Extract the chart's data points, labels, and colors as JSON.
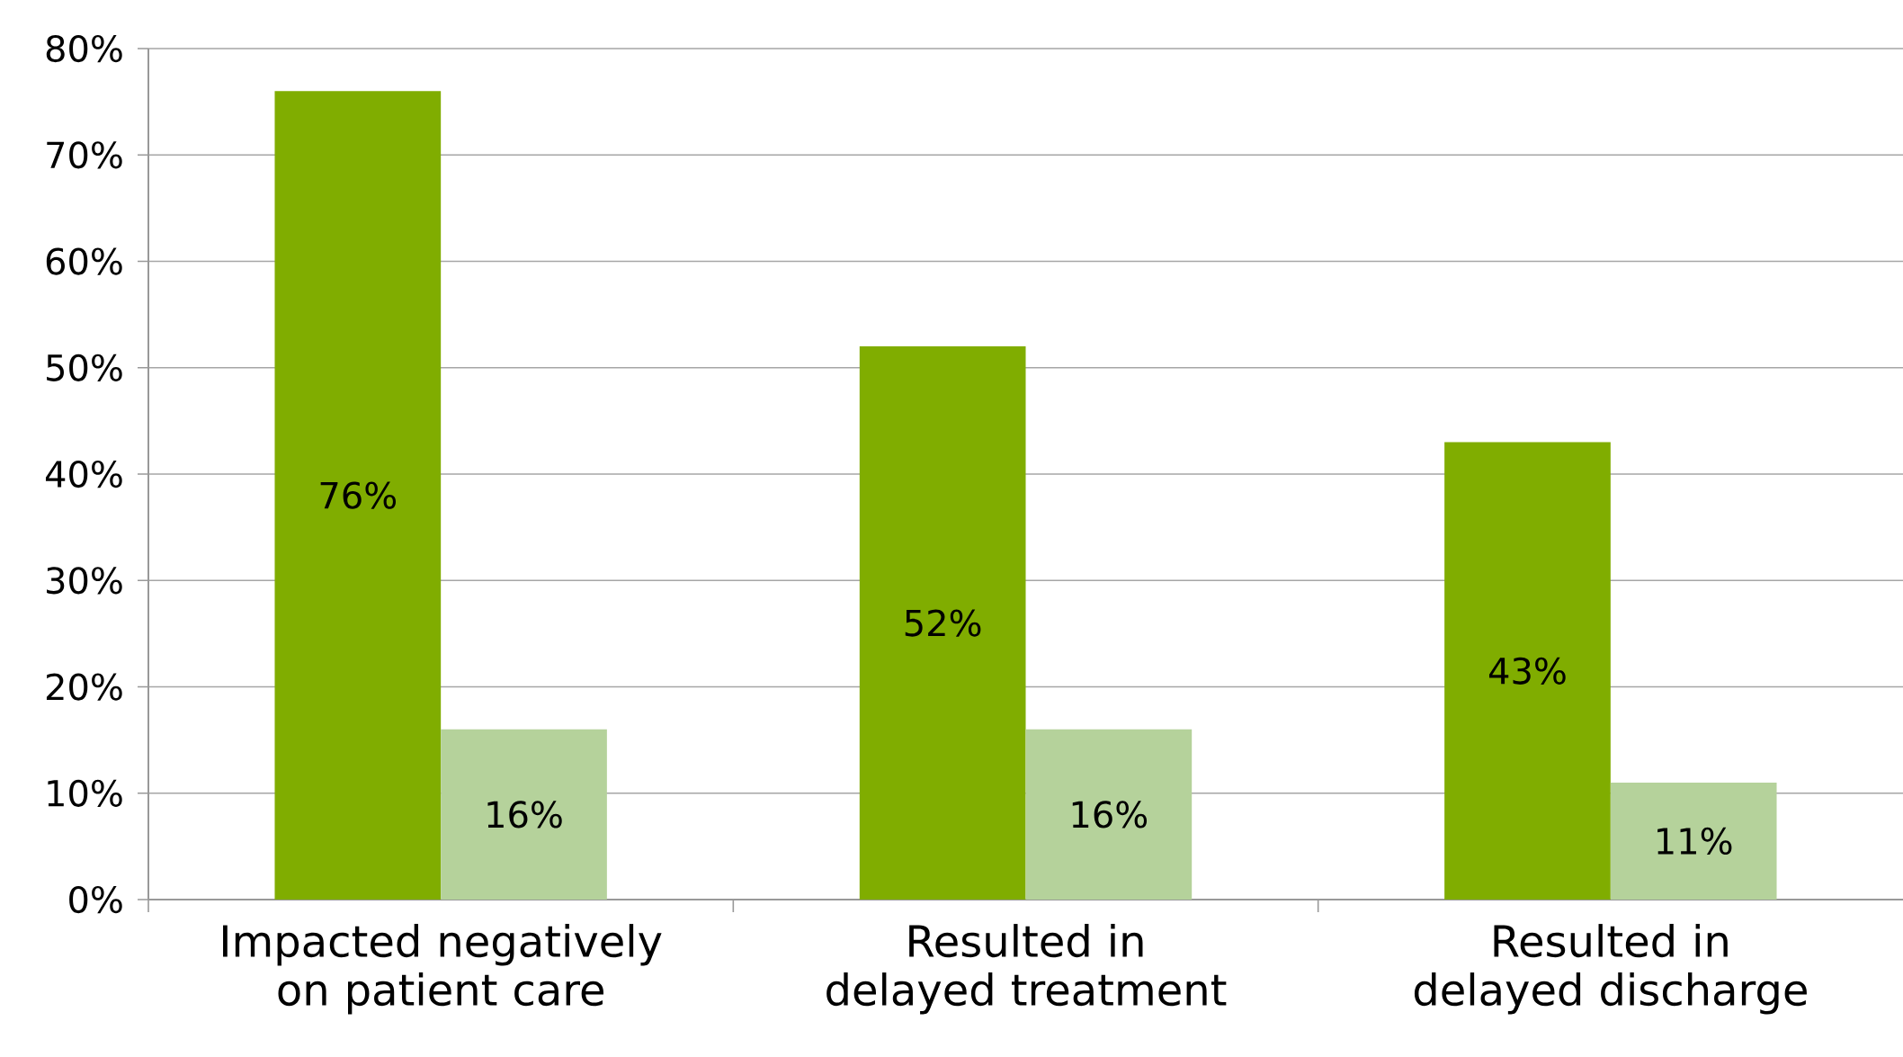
{
  "chart_data": {
    "type": "bar",
    "categories": [
      "Impacted negatively on patient care",
      "Resulted in delayed treatment",
      "Resulted in delayed discharge"
    ],
    "series": [
      {
        "color": "#80ad00",
        "values": [
          76,
          52,
          43
        ],
        "value_labels": [
          "76%",
          "52%",
          "43%"
        ]
      },
      {
        "color": "#b5d29b",
        "values": [
          16,
          16,
          11
        ],
        "value_labels": [
          "16%",
          "16%",
          "11%"
        ]
      }
    ],
    "ylim": [
      0,
      80
    ],
    "yticks": [
      {
        "value": 0,
        "label": "0%"
      },
      {
        "value": 10,
        "label": "10%"
      },
      {
        "value": 20,
        "label": "20%"
      },
      {
        "value": 30,
        "label": "30%"
      },
      {
        "value": 40,
        "label": "40%"
      },
      {
        "value": 50,
        "label": "50%"
      },
      {
        "value": 60,
        "label": "60%"
      },
      {
        "value": 70,
        "label": "70%"
      },
      {
        "value": 80,
        "label": "80%"
      }
    ],
    "grid": "y"
  }
}
